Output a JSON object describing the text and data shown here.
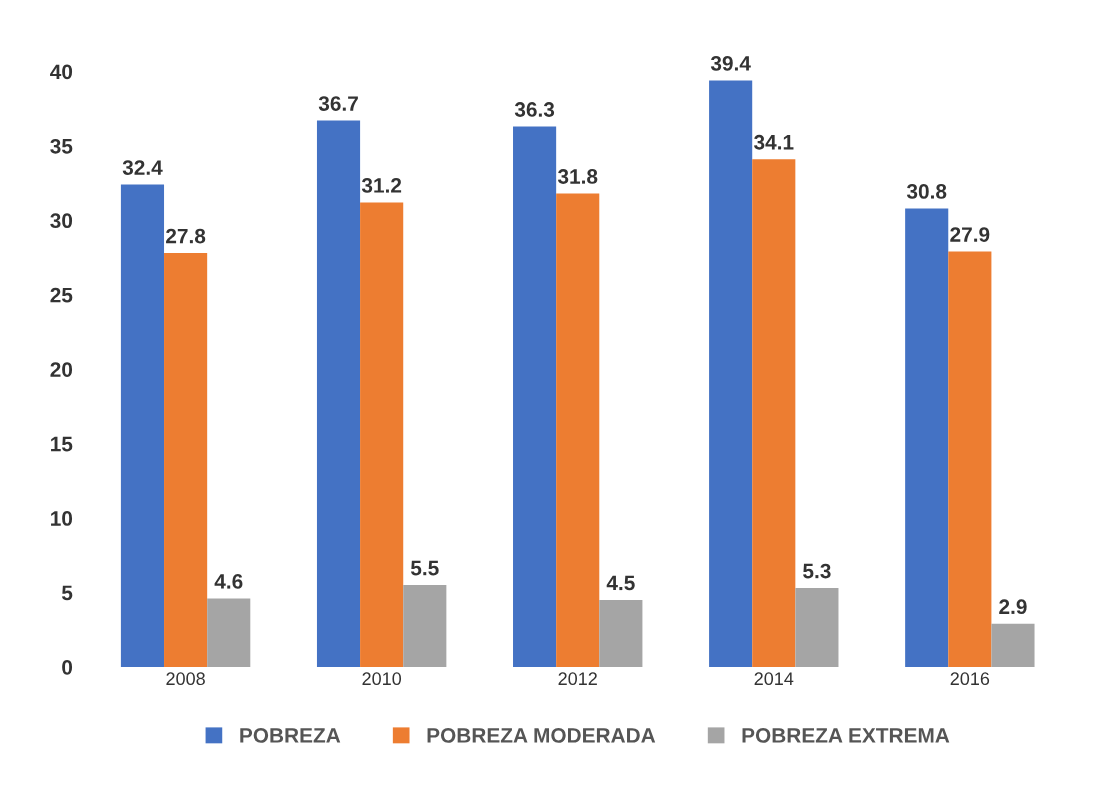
{
  "chart_data": {
    "type": "bar",
    "categories": [
      "2008",
      "2010",
      "2012",
      "2014",
      "2016"
    ],
    "series": [
      {
        "name": "POBREZA",
        "color": "#4472c4",
        "values": [
          32.4,
          36.7,
          36.3,
          39.4,
          30.8
        ]
      },
      {
        "name": "POBREZA MODERADA",
        "color": "#ed7d31",
        "values": [
          27.8,
          31.2,
          31.8,
          34.1,
          27.9
        ]
      },
      {
        "name": "POBREZA EXTREMA",
        "color": "#a5a5a5",
        "values": [
          4.6,
          5.5,
          4.5,
          5.3,
          2.9
        ]
      }
    ],
    "ylim": [
      0,
      40
    ],
    "yticks": [
      0,
      5,
      10,
      15,
      20,
      25,
      30,
      35,
      40
    ],
    "grid": false,
    "legend": "bottom",
    "data_labels": true
  }
}
